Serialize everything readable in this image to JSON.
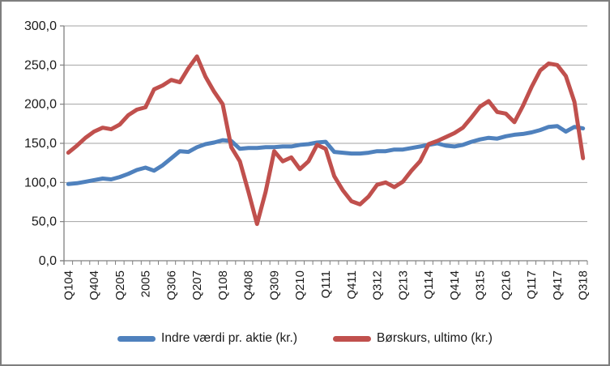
{
  "chart_data": {
    "type": "line",
    "title": "",
    "x_labels": [
      "Q104",
      "Q404",
      "Q205",
      "2005",
      "Q306",
      "Q207",
      "Q108",
      "Q408",
      "Q309",
      "Q210",
      "Q111",
      "Q411",
      "Q312",
      "Q213",
      "Q114",
      "Q414",
      "Q315",
      "Q216",
      "Q117",
      "Q417",
      "Q318"
    ],
    "x_label_every": 3,
    "n_points": 61,
    "y_axis": {
      "min": 0,
      "max": 300,
      "step": 50,
      "tick_labels": [
        "300,0",
        "250,0",
        "200,0",
        "150,0",
        "100,0",
        "50,0",
        "0,0"
      ]
    },
    "grid": true,
    "legend_position": "bottom",
    "colors": {
      "gridline": "#A3A3A3",
      "axis": "#808080",
      "border": "#7E7E7E",
      "text": "#1a1a1a"
    },
    "series": [
      {
        "name": "Indre værdi pr. aktie (kr.)",
        "color": "#4F81BD",
        "values": [
          98,
          99,
          101,
          103,
          105,
          104,
          107,
          111,
          116,
          119,
          115,
          122,
          131,
          140,
          139,
          145,
          149,
          151,
          154,
          153,
          143,
          144,
          144,
          145,
          145,
          146,
          146,
          148,
          149,
          151,
          152,
          139,
          138,
          137,
          137,
          138,
          140,
          140,
          142,
          142,
          144,
          146,
          148,
          150,
          147,
          146,
          148,
          152,
          155,
          157,
          156,
          159,
          161,
          162,
          164,
          167,
          171,
          172,
          165,
          171,
          169
        ]
      },
      {
        "name": "Børskurs, ultimo (kr.)",
        "color": "#C0504D",
        "values": [
          138,
          147,
          157,
          165,
          170,
          168,
          174,
          186,
          193,
          196,
          219,
          224,
          231,
          228,
          246,
          261,
          235,
          216,
          200,
          145,
          127,
          88,
          47,
          88,
          140,
          127,
          132,
          117,
          127,
          148,
          143,
          108,
          90,
          76,
          72,
          82,
          97,
          100,
          94,
          101,
          115,
          127,
          149,
          153,
          158,
          163,
          170,
          183,
          197,
          204,
          190,
          188,
          177,
          198,
          222,
          243,
          252,
          250,
          236,
          203,
          131
        ]
      }
    ]
  }
}
